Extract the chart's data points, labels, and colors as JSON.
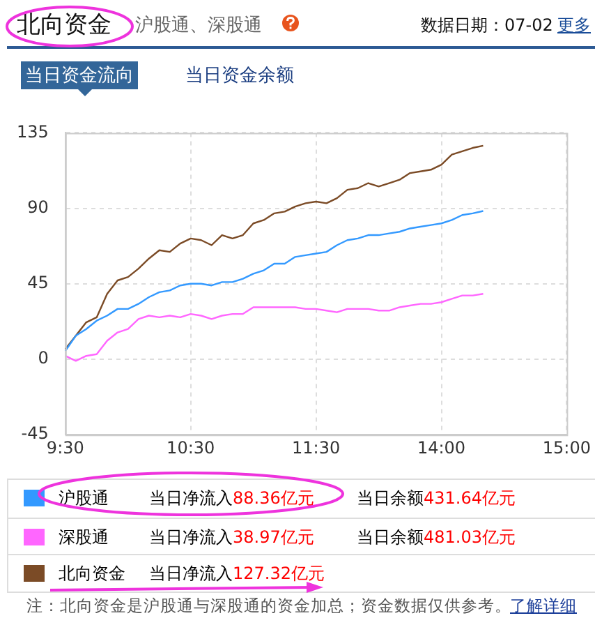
{
  "chart_data": {
    "type": "line",
    "title": "北向资金",
    "subtitle": "沪股通、深股通",
    "annotations": [
      "数据日期：07-02",
      "更多",
      "当日资金流向",
      "当日资金余额",
      "当日净流入",
      "88.36亿元",
      "当日余额",
      "431.64亿元",
      "当日净流入",
      "38.97亿元",
      "当日余额",
      "481.03亿元",
      "当日净流入",
      "127.32亿元",
      "注：北向资金是沪股通与深股通的资金加总；资金数据仅供参考。",
      "了解详细"
    ],
    "categories": [
      "9:30",
      null,
      null,
      null,
      null,
      null,
      null,
      null,
      null,
      null,
      null,
      null,
      "10:30",
      null,
      null,
      null,
      null,
      null,
      null,
      null,
      null,
      null,
      null,
      null,
      "11:30",
      null,
      null,
      null,
      null,
      null,
      null,
      null,
      null,
      null,
      null,
      null,
      "14:00",
      null,
      null,
      null,
      null,
      null,
      null,
      null,
      null,
      null,
      null,
      null,
      "15:00"
    ],
    "ylim": [
      -45,
      135
    ],
    "yticks": [
      135,
      90,
      45,
      0,
      -45
    ],
    "grid": true,
    "legend": "bottom",
    "series": [
      {
        "name": "沪股通",
        "color": "#3399ff",
        "values": [
          5,
          14,
          18,
          23,
          26,
          30,
          30,
          33,
          37,
          40,
          41,
          44,
          45,
          45,
          44,
          46,
          46,
          48,
          51,
          53,
          57,
          57,
          61,
          62,
          63,
          64,
          68,
          71,
          72,
          74,
          74,
          75,
          76,
          78,
          79,
          80,
          81,
          83,
          86,
          87,
          88.36,
          null,
          null,
          null,
          null,
          null,
          null,
          null,
          null
        ]
      },
      {
        "name": "深股通",
        "color": "#ff66ff",
        "values": [
          2,
          -1,
          2,
          3,
          11,
          16,
          18,
          24,
          26,
          25,
          26,
          25,
          27,
          26,
          24,
          26,
          27,
          27,
          31,
          31,
          31,
          31,
          31,
          30,
          30,
          29,
          28,
          30,
          30,
          30,
          29,
          29,
          31,
          32,
          33,
          33,
          34,
          36,
          38,
          38,
          38.97,
          null,
          null,
          null,
          null,
          null,
          null,
          null,
          null
        ]
      },
      {
        "name": "北向资金",
        "color": "#7b4b26",
        "values": [
          6,
          14,
          22,
          25,
          39,
          47,
          49,
          54,
          60,
          65,
          64,
          69,
          72,
          71,
          68,
          74,
          72,
          74,
          81,
          83,
          87,
          88,
          91,
          93,
          94,
          93,
          96,
          101,
          102,
          105,
          103,
          105,
          107,
          111,
          112,
          113,
          116,
          122,
          124,
          126,
          127.32,
          null,
          null,
          null,
          null,
          null,
          null,
          null,
          null
        ]
      }
    ]
  }
}
